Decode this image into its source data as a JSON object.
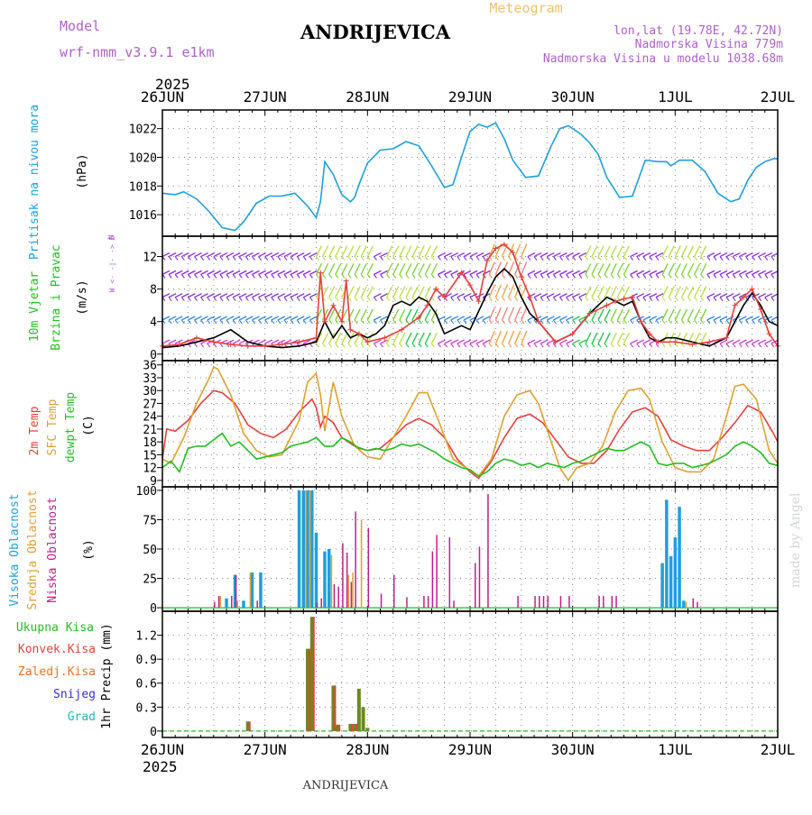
{
  "header": {
    "model_label": "Model",
    "model_value": "wrf-nmm_v3.9.1  e1km",
    "station": "ANDRIJEVICA",
    "product": "Meteogram",
    "lonlat": "lon,lat (19.78E, 42.72N)",
    "elevation": "Nadmorska Visina 779m",
    "model_elevation": "Nadmorska Visina u modelu 1038.68m",
    "year_top": "2025",
    "year_bottom": "2025",
    "footer_station": "ANDRIJEVICA",
    "watermark": "made by Angel"
  },
  "colors": {
    "pressure": "#1e9fe0",
    "speed": "#000000",
    "gust": "#e8403a",
    "t2m": "#e8403a",
    "sfc": "#e0a030",
    "dew": "#22c020",
    "high_cloud": "#1e9fe0",
    "mid_cloud": "#e0a030",
    "low_cloud": "#c0208a",
    "total_precip": "#6a8a20",
    "conv_precip": "#e8403a",
    "label_green": "#22c020",
    "label_red": "#e8403a",
    "label_orange": "#f07020",
    "label_blue": "#3030e0",
    "label_cyan": "#20b8b8",
    "label_purple": "#b060d0",
    "label_pink": "#e020a0"
  },
  "panel_labels": {
    "pressure": [
      "Pritisak na nivou mora",
      "(hPa)"
    ],
    "wind": [
      "10m Vjetar",
      "Brzina i Pravac",
      "(m/s)"
    ],
    "wind_compass": [
      "N",
      "^",
      "|",
      "W <- -|- -> E",
      "|",
      "v",
      "S"
    ],
    "temp": [
      "2m Temp",
      "SFC Temp",
      "dewpt Temp",
      "(C)"
    ],
    "cloud": [
      "Visoka Oblacnost",
      "Srednja Oblacnost",
      "Niska Oblacnost",
      "(%)"
    ],
    "precip_legend": [
      "Ukupna Kisa",
      "Konvek.Kisa",
      "Zaledj.Kisa",
      "Snijeg",
      "Grad"
    ],
    "precip_axis": "1hr Precip (mm)"
  },
  "chart_data": [
    {
      "type": "line",
      "title": "Pritisak na nivou mora",
      "ylabel": "(hPa)",
      "x_labels": [
        "26JUN",
        "27JUN",
        "28JUN",
        "29JUN",
        "30JUN",
        "1JUL",
        "2JUL"
      ],
      "x_hours": [
        0,
        24,
        48,
        72,
        96,
        120,
        144
      ],
      "ylim": [
        1014.5,
        1023.3
      ],
      "yticks": [
        1016,
        1018,
        1020,
        1022
      ],
      "grid": true,
      "series": [
        {
          "name": "Pritisak na nivou mora",
          "color_key": "pressure",
          "x": [
            0,
            3,
            5,
            8,
            11,
            14,
            17,
            19,
            22,
            25,
            28,
            31,
            34,
            36,
            37,
            38,
            40,
            42,
            44,
            45,
            46,
            48,
            51,
            54,
            57,
            60,
            63,
            66,
            68,
            70,
            72,
            74,
            76,
            78,
            80,
            82,
            85,
            88,
            91,
            93,
            95,
            98,
            100,
            102,
            104,
            107,
            110,
            113,
            116,
            118,
            119,
            121,
            124,
            127,
            130,
            133,
            135,
            137,
            139,
            141,
            143,
            144
          ],
          "y": [
            1017.5,
            1017.4,
            1017.6,
            1017.1,
            1016.2,
            1015.1,
            1014.9,
            1015.5,
            1016.8,
            1017.3,
            1017.3,
            1017.5,
            1016.6,
            1015.8,
            1016.9,
            1019.7,
            1018.8,
            1017.4,
            1016.9,
            1017.2,
            1018.1,
            1019.6,
            1020.5,
            1020.6,
            1021.1,
            1020.8,
            1019.4,
            1017.9,
            1018.1,
            1020.0,
            1021.8,
            1022.3,
            1022.1,
            1022.4,
            1021.3,
            1019.8,
            1018.6,
            1018.7,
            1020.8,
            1022.0,
            1022.2,
            1021.6,
            1021.0,
            1020.2,
            1018.6,
            1017.2,
            1017.3,
            1019.8,
            1019.7,
            1019.7,
            1019.4,
            1019.8,
            1019.8,
            1019.0,
            1017.5,
            1016.9,
            1017.1,
            1018.4,
            1019.3,
            1019.7,
            1019.9,
            1019.9
          ]
        }
      ]
    },
    {
      "type": "line",
      "title": "10m Vjetar Brzina i Pravac",
      "ylabel": "(m/s)",
      "ylim": [
        -0.8,
        14.5
      ],
      "yticks": [
        0,
        4,
        8,
        12
      ],
      "grid": true,
      "series": [
        {
          "name": "speed",
          "color_key": "speed",
          "x": [
            0,
            4,
            8,
            12,
            16,
            20,
            24,
            28,
            32,
            36,
            38,
            40,
            42,
            44,
            46,
            48,
            50,
            52,
            54,
            56,
            58,
            60,
            62,
            64,
            66,
            70,
            72,
            76,
            78,
            80,
            82,
            84,
            86,
            88,
            92,
            96,
            100,
            104,
            108,
            110,
            112,
            114,
            116,
            118,
            120,
            124,
            128,
            132,
            136,
            138,
            140,
            142,
            144
          ],
          "y": [
            0.8,
            1.0,
            1.5,
            2.0,
            3.0,
            1.5,
            1.0,
            0.8,
            1.0,
            1.5,
            4.0,
            2.0,
            3.5,
            2.0,
            2.5,
            2.0,
            2.5,
            3.5,
            6.0,
            6.5,
            6.0,
            7.0,
            6.5,
            5.0,
            2.5,
            3.5,
            3.0,
            7.5,
            9.5,
            10.5,
            9.5,
            7.0,
            5.0,
            4.0,
            1.5,
            2.5,
            5.0,
            7.0,
            6.0,
            6.5,
            4.0,
            2.0,
            1.5,
            2.0,
            2.0,
            1.5,
            1.0,
            2.0,
            6.0,
            7.5,
            6.0,
            4.0,
            3.5
          ]
        },
        {
          "name": "gust",
          "color_key": "gust",
          "x": [
            0,
            4,
            8,
            12,
            16,
            20,
            24,
            28,
            32,
            36,
            37,
            38,
            40,
            42,
            43,
            44,
            46,
            48,
            52,
            56,
            60,
            62,
            64,
            66,
            70,
            72,
            74,
            76,
            78,
            80,
            82,
            84,
            86,
            88,
            92,
            96,
            100,
            104,
            106,
            108,
            110,
            112,
            114,
            116,
            120,
            124,
            128,
            132,
            134,
            136,
            138,
            140,
            142,
            144
          ],
          "y": [
            1.0,
            1.2,
            2.0,
            1.5,
            1.2,
            1.0,
            1.0,
            1.2,
            1.5,
            2.0,
            10.0,
            4.0,
            6.0,
            4.0,
            9.0,
            3.0,
            2.5,
            1.5,
            2.0,
            3.0,
            4.5,
            6.0,
            8.0,
            7.0,
            10.0,
            8.5,
            6.5,
            11.5,
            13.0,
            13.5,
            12.5,
            9.5,
            7.0,
            4.0,
            1.5,
            2.5,
            5.0,
            6.0,
            6.5,
            6.8,
            7.0,
            4.0,
            2.5,
            1.5,
            1.5,
            1.2,
            1.5,
            2.0,
            6.0,
            7.0,
            8.0,
            5.5,
            2.5,
            1.0
          ]
        }
      ]
    },
    {
      "type": "line",
      "title": "Temperature",
      "ylabel": "(C)",
      "ylim": [
        7.5,
        37.0
      ],
      "yticks": [
        9,
        12,
        15,
        18,
        21,
        24,
        27,
        30,
        33,
        36
      ],
      "grid": true,
      "series": [
        {
          "name": "2m Temp",
          "color_key": "t2m",
          "x": [
            0,
            1,
            3,
            6,
            9,
            12,
            14,
            17,
            20,
            23,
            26,
            29,
            32,
            35,
            36,
            37,
            38,
            40,
            42,
            45,
            48,
            51,
            54,
            57,
            60,
            63,
            66,
            69,
            72,
            74,
            77,
            80,
            83,
            86,
            89,
            92,
            95,
            98,
            101,
            104,
            107,
            110,
            113,
            116,
            119,
            122,
            125,
            128,
            131,
            134,
            137,
            140,
            143,
            144
          ],
          "y": [
            14.0,
            21.0,
            20.5,
            23.0,
            27.0,
            30.0,
            29.5,
            27.0,
            22.0,
            20.0,
            19.0,
            21.0,
            25.0,
            28.0,
            26.0,
            21.5,
            24.0,
            22.5,
            19.0,
            17.0,
            16.0,
            16.5,
            19.0,
            22.0,
            23.5,
            22.0,
            19.0,
            14.0,
            11.0,
            9.5,
            13.5,
            19.0,
            23.5,
            24.5,
            22.5,
            18.5,
            14.5,
            13.0,
            13.0,
            16.0,
            21.0,
            25.0,
            26.0,
            24.0,
            18.5,
            17.0,
            16.0,
            16.0,
            19.0,
            22.5,
            26.5,
            25.0,
            20.0,
            18.0
          ]
        },
        {
          "name": "SFC Temp",
          "color_key": "sfc",
          "x": [
            0,
            2,
            5,
            8,
            11,
            12,
            13,
            16,
            19,
            22,
            25,
            28,
            32,
            34,
            36,
            37,
            38,
            40,
            42,
            45,
            48,
            51,
            54,
            57,
            60,
            62,
            65,
            68,
            71,
            74,
            77,
            80,
            83,
            86,
            88,
            91,
            93,
            95,
            97,
            100,
            103,
            106,
            109,
            112,
            114,
            117,
            120,
            123,
            126,
            129,
            132,
            134,
            136,
            139,
            142,
            144
          ],
          "y": [
            14.0,
            13.0,
            19.0,
            27.0,
            33.0,
            35.5,
            35.0,
            29.0,
            20.0,
            16.0,
            14.5,
            15.0,
            23.0,
            32.0,
            34.0,
            29.0,
            20.5,
            32.0,
            24.0,
            17.0,
            14.5,
            14.0,
            19.0,
            24.0,
            29.5,
            29.5,
            22.0,
            14.0,
            12.0,
            10.0,
            14.0,
            24.0,
            29.0,
            30.0,
            27.0,
            18.0,
            12.0,
            9.0,
            12.0,
            13.0,
            17.0,
            25.0,
            30.0,
            30.5,
            28.0,
            18.0,
            12.0,
            11.0,
            11.0,
            14.0,
            24.0,
            31.0,
            31.5,
            28.0,
            16.0,
            13.0
          ]
        },
        {
          "name": "dewpt Temp",
          "color_key": "dew",
          "x": [
            0,
            2,
            4,
            6,
            8,
            10,
            12,
            14,
            16,
            18,
            20,
            22,
            24,
            26,
            28,
            30,
            32,
            34,
            36,
            38,
            40,
            42,
            44,
            46,
            48,
            50,
            52,
            54,
            56,
            58,
            60,
            62,
            64,
            66,
            68,
            70,
            72,
            74,
            76,
            78,
            80,
            82,
            84,
            86,
            88,
            90,
            92,
            94,
            96,
            98,
            100,
            102,
            104,
            106,
            108,
            110,
            112,
            114,
            116,
            118,
            120,
            122,
            124,
            126,
            128,
            130,
            132,
            134,
            136,
            138,
            140,
            142,
            144
          ],
          "y": [
            12.0,
            13.5,
            11.0,
            16.5,
            17.0,
            17.0,
            18.5,
            20.0,
            17.0,
            18.0,
            16.0,
            14.0,
            14.5,
            15.0,
            15.5,
            17.0,
            17.5,
            18.0,
            19.0,
            17.0,
            17.0,
            19.0,
            18.0,
            16.5,
            16.0,
            16.5,
            16.0,
            16.5,
            17.5,
            17.0,
            17.5,
            16.5,
            15.5,
            14.0,
            13.0,
            12.0,
            11.5,
            10.0,
            11.0,
            13.0,
            14.0,
            13.5,
            12.5,
            13.0,
            12.0,
            13.0,
            12.5,
            12.0,
            13.0,
            13.5,
            14.5,
            15.5,
            16.5,
            16.0,
            16.0,
            17.0,
            18.0,
            17.0,
            13.0,
            12.5,
            13.0,
            13.0,
            12.0,
            12.5,
            13.0,
            14.0,
            15.0,
            17.0,
            18.0,
            17.0,
            15.5,
            13.0,
            12.5
          ]
        }
      ]
    },
    {
      "type": "bar",
      "title": "Oblacnost",
      "ylabel": "(%)",
      "ylim": [
        -3,
        103
      ],
      "yticks": [
        0,
        25,
        50,
        75,
        100
      ],
      "grid": true,
      "series": [
        {
          "name": "Visoka Oblacnost",
          "color_key": "high_cloud",
          "x": [
            15,
            17,
            19,
            21,
            23,
            32,
            33,
            34,
            35,
            36,
            38,
            39,
            117,
            118,
            119,
            120,
            121,
            122
          ],
          "y": [
            8,
            28,
            6,
            30,
            30,
            100,
            100,
            100,
            100,
            64,
            48,
            50,
            38,
            92,
            44,
            60,
            86,
            6
          ]
        },
        {
          "name": "Srednja Oblacnost",
          "color_key": "mid_cloud",
          "x": [
            14,
            18,
            21,
            34,
            35,
            40,
            44,
            45,
            47,
            123
          ],
          "y": [
            10,
            6,
            30,
            100,
            100,
            45,
            28,
            30,
            75,
            5
          ]
        },
        {
          "name": "Niska Oblacnost",
          "color_key": "low_cloud",
          "x": [
            12,
            13,
            16,
            17,
            22,
            36,
            37,
            40,
            41,
            42,
            43,
            44,
            45,
            48,
            51,
            54,
            57,
            61,
            62,
            63,
            64,
            67,
            68,
            73,
            74,
            76,
            83,
            87,
            88,
            89,
            90,
            93,
            95,
            102,
            103,
            105,
            106,
            124,
            125
          ],
          "y": [
            5,
            10,
            10,
            28,
            6,
            4,
            8,
            20,
            18,
            55,
            47,
            22,
            82,
            68,
            12,
            28,
            9,
            10,
            10,
            48,
            62,
            60,
            6,
            38,
            52,
            97,
            10,
            10,
            10,
            10,
            10,
            10,
            10,
            10,
            10,
            10,
            10,
            8,
            5
          ]
        }
      ]
    },
    {
      "type": "bar",
      "title": "1hr Precip",
      "ylabel": "1hr Precip (mm)",
      "ylim": [
        -0.08,
        1.5
      ],
      "yticks": [
        0,
        0.3,
        0.6,
        0.9,
        1.2
      ],
      "grid": true,
      "series": [
        {
          "name": "Ukupna Kisa",
          "color_key": "total_precip",
          "x": [
            20,
            34,
            35,
            40,
            41,
            44,
            45,
            46,
            47,
            48
          ],
          "y": [
            0.12,
            1.03,
            1.43,
            0.57,
            0.08,
            0.09,
            0.09,
            0.53,
            0.3,
            0.04
          ]
        },
        {
          "name": "Konvek.Kisa",
          "color_key": "conv_precip",
          "x": [
            20,
            34,
            35,
            40,
            41,
            44,
            45
          ],
          "y": [
            0.12,
            1.03,
            1.43,
            0.57,
            0.08,
            0.09,
            0.09
          ]
        }
      ]
    }
  ]
}
